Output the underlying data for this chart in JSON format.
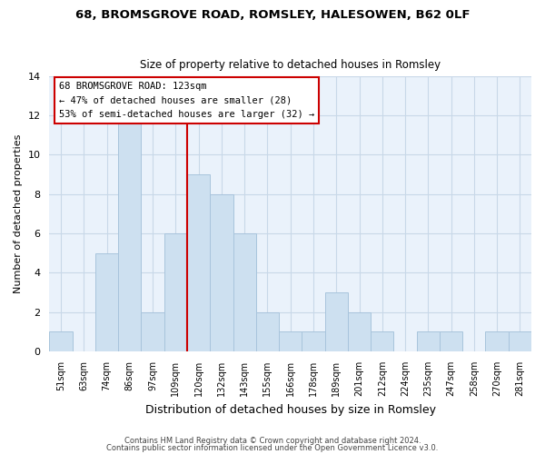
{
  "title1": "68, BROMSGROVE ROAD, ROMSLEY, HALESOWEN, B62 0LF",
  "title2": "Size of property relative to detached houses in Romsley",
  "xlabel": "Distribution of detached houses by size in Romsley",
  "ylabel": "Number of detached properties",
  "bar_labels": [
    "51sqm",
    "63sqm",
    "74sqm",
    "86sqm",
    "97sqm",
    "109sqm",
    "120sqm",
    "132sqm",
    "143sqm",
    "155sqm",
    "166sqm",
    "178sqm",
    "189sqm",
    "201sqm",
    "212sqm",
    "224sqm",
    "235sqm",
    "247sqm",
    "258sqm",
    "270sqm",
    "281sqm"
  ],
  "bar_heights": [
    1,
    0,
    5,
    12,
    2,
    6,
    9,
    8,
    6,
    2,
    1,
    1,
    3,
    2,
    1,
    0,
    1,
    1,
    0,
    1,
    1
  ],
  "bar_color": "#cde0f0",
  "bar_edge_color": "#a8c4dc",
  "ref_line_x_label": "120sqm",
  "ref_line_color": "#cc0000",
  "ylim": [
    0,
    14
  ],
  "yticks": [
    0,
    2,
    4,
    6,
    8,
    10,
    12,
    14
  ],
  "annotation_title": "68 BROMSGROVE ROAD: 123sqm",
  "annotation_line1": "← 47% of detached houses are smaller (28)",
  "annotation_line2": "53% of semi-detached houses are larger (32) →",
  "footnote1": "Contains HM Land Registry data © Crown copyright and database right 2024.",
  "footnote2": "Contains public sector information licensed under the Open Government Licence v3.0.",
  "background_color": "#ffffff",
  "grid_color": "#c8d8e8"
}
